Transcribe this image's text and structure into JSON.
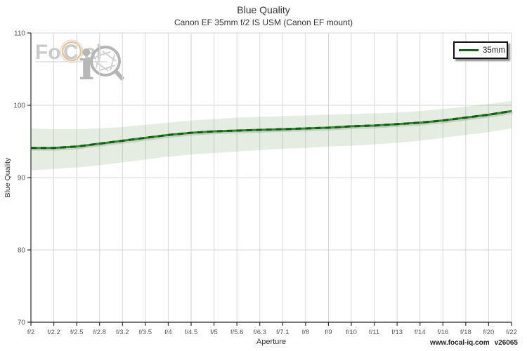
{
  "header": {
    "title": "Blue Quality",
    "subtitle": "Canon EF 35mm f/2 IS USM (Canon EF mount)"
  },
  "watermark": {
    "brand_fo": "Fo",
    "brand_c": "C",
    "brand_al": "al",
    "brand_i": "i",
    "ring_color": "#e5bd8d",
    "gray": "#c2c2c2"
  },
  "legend": {
    "series_label": "35mm",
    "line_color": "#176117"
  },
  "footer": {
    "site": "www.focal-iq.com",
    "version": "v26065"
  },
  "chart_data": {
    "type": "line",
    "title": "Blue Quality",
    "subtitle": "Canon EF 35mm f/2 IS USM (Canon EF mount)",
    "xlabel": "Aperture",
    "ylabel": "Blue Quality",
    "ylim": [
      70,
      110
    ],
    "yticks": [
      70,
      80,
      90,
      100,
      110
    ],
    "grid": true,
    "legend_position": "top-right",
    "categories": [
      "f/2",
      "f/2.2",
      "f/2.5",
      "f/2.8",
      "f/3.2",
      "f/3.5",
      "f/4",
      "f/4.5",
      "f/5",
      "f/5.6",
      "f/6.3",
      "f/7.1",
      "f/8",
      "f/9",
      "f/10",
      "f/11",
      "f/13",
      "f/14",
      "f/16",
      "f/18",
      "f/20",
      "f/22"
    ],
    "series": [
      {
        "name": "35mm",
        "color": "#2e8b2e",
        "dash_color": "#135c13",
        "values": [
          94.1,
          94.1,
          94.3,
          94.7,
          95.1,
          95.5,
          95.9,
          96.2,
          96.4,
          96.5,
          96.6,
          96.7,
          96.8,
          96.9,
          97.1,
          97.2,
          97.4,
          97.6,
          97.9,
          98.3,
          98.7,
          99.2
        ],
        "band_upper": [
          96.8,
          96.7,
          96.7,
          96.8,
          97.0,
          97.3,
          97.6,
          97.9,
          98.1,
          98.3,
          98.4,
          98.5,
          98.6,
          98.7,
          98.8,
          98.9,
          99.0,
          99.2,
          99.5,
          99.8,
          100.2,
          100.6
        ],
        "band_lower": [
          91.0,
          91.2,
          91.4,
          91.7,
          92.1,
          92.5,
          92.9,
          93.2,
          93.4,
          93.6,
          93.8,
          94.0,
          94.1,
          94.3,
          94.4,
          94.6,
          94.8,
          95.1,
          95.5,
          95.9,
          96.3,
          96.8
        ],
        "band_color": "rgba(95,145,80,0.16)"
      }
    ]
  }
}
